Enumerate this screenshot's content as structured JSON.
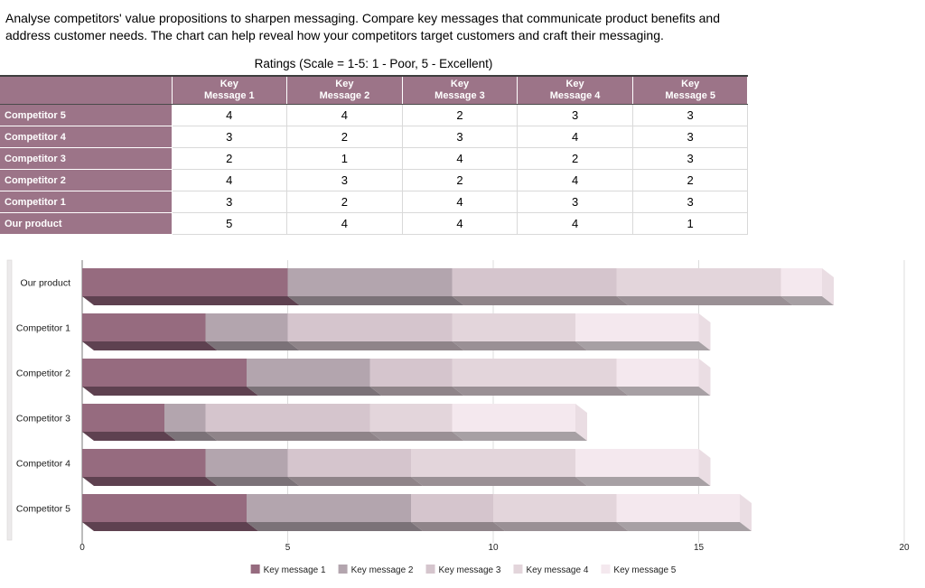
{
  "description_lines": [
    "Analyse competitors' value propositions to sharpen messaging. Compare key messages that communicate product benefits and",
    "address customer needs. The chart can help reveal how your competitors target customers and craft their messaging."
  ],
  "table": {
    "title": "Ratings (Scale = 1-5: 1 - Poor, 5 - Excellent)",
    "corner_label": "",
    "header_bg": "#9C7488",
    "columns": [
      {
        "line1": "Key",
        "line2": "Message 1"
      },
      {
        "line1": "Key",
        "line2": "Message 2"
      },
      {
        "line1": "Key",
        "line2": "Message 3"
      },
      {
        "line1": "Key",
        "line2": "Message 4"
      },
      {
        "line1": "Key",
        "line2": "Message 5"
      }
    ],
    "rows": [
      {
        "label": "Competitor 5",
        "values": [
          4,
          4,
          2,
          3,
          3
        ]
      },
      {
        "label": "Competitor 4",
        "values": [
          3,
          2,
          3,
          4,
          3
        ]
      },
      {
        "label": "Competitor 3",
        "values": [
          2,
          1,
          4,
          2,
          3
        ]
      },
      {
        "label": "Competitor 2",
        "values": [
          4,
          3,
          2,
          4,
          2
        ]
      },
      {
        "label": "Competitor 1",
        "values": [
          3,
          2,
          4,
          3,
          3
        ]
      },
      {
        "label": "Our product",
        "values": [
          5,
          4,
          4,
          4,
          1
        ]
      }
    ]
  },
  "chart_data": {
    "type": "bar",
    "orientation": "horizontal",
    "stacked": true,
    "style": "3d",
    "categories": [
      "Our product",
      "Competitor 1",
      "Competitor 2",
      "Competitor 3",
      "Competitor 4",
      "Competitor 5"
    ],
    "series": [
      {
        "name": "Key message 1",
        "color": "#966B7F",
        "shadow": "#5E4150",
        "values": [
          5,
          3,
          4,
          2,
          3,
          4
        ]
      },
      {
        "name": "Key message 2",
        "color": "#B3A5AE",
        "shadow": "#7B7278",
        "values": [
          4,
          2,
          3,
          1,
          2,
          4
        ]
      },
      {
        "name": "Key message 3",
        "color": "#D5C5CD",
        "shadow": "#8F8489",
        "values": [
          4,
          4,
          2,
          4,
          3,
          2
        ]
      },
      {
        "name": "Key message 4",
        "color": "#E3D5DB",
        "shadow": "#9A9095",
        "values": [
          4,
          3,
          4,
          2,
          4,
          3
        ]
      },
      {
        "name": "Key message 5",
        "color": "#F4E8EE",
        "shadow": "#A7A0A4",
        "values": [
          1,
          3,
          2,
          3,
          3,
          3
        ]
      }
    ],
    "totals": [
      18,
      15,
      15,
      12,
      15,
      16
    ],
    "xlim": [
      0,
      20
    ],
    "ticks": [
      0,
      5,
      10,
      15,
      20
    ],
    "grid": true,
    "legend_position": "bottom",
    "end_cap_color": "#EADDE3",
    "grid_color": "#DCDCDC",
    "zero_line_color": "#7A7A7A"
  }
}
